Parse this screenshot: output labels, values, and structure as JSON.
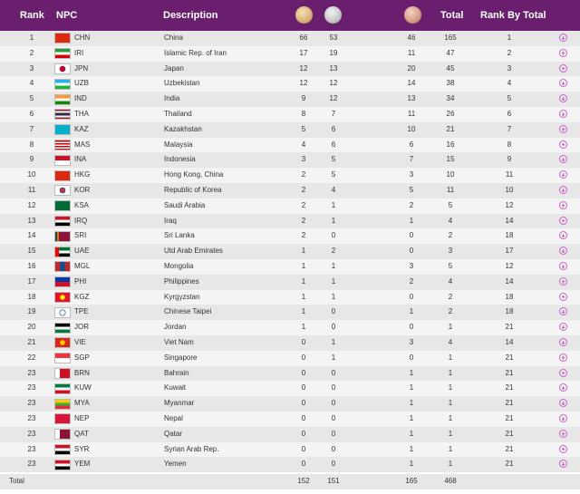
{
  "header": {
    "rank": "Rank",
    "npc": "NPC",
    "description": "Description",
    "gold_icon": "gold-medal-icon",
    "silver_icon": "silver-medal-icon",
    "bronze_icon": "bronze-medal-icon",
    "total": "Total",
    "rank_by_total": "Rank By Total"
  },
  "rows": [
    {
      "rank": "1",
      "code": "CHN",
      "desc": "China",
      "g": "66",
      "s": "53",
      "b": "46",
      "t": "165",
      "rbt": "1",
      "flag": "china-flag"
    },
    {
      "rank": "2",
      "code": "IRI",
      "desc": "Islamic Rep. of Iran",
      "g": "17",
      "s": "19",
      "b": "11",
      "t": "47",
      "rbt": "2",
      "flag": "iran-flag"
    },
    {
      "rank": "3",
      "code": "JPN",
      "desc": "Japan",
      "g": "12",
      "s": "13",
      "b": "20",
      "t": "45",
      "rbt": "3",
      "flag": "japan-flag"
    },
    {
      "rank": "4",
      "code": "UZB",
      "desc": "Uzbekistan",
      "g": "12",
      "s": "12",
      "b": "14",
      "t": "38",
      "rbt": "4",
      "flag": "uzbekistan-flag"
    },
    {
      "rank": "5",
      "code": "IND",
      "desc": "India",
      "g": "9",
      "s": "12",
      "b": "13",
      "t": "34",
      "rbt": "5",
      "flag": "india-flag"
    },
    {
      "rank": "6",
      "code": "THA",
      "desc": "Thailand",
      "g": "8",
      "s": "7",
      "b": "11",
      "t": "26",
      "rbt": "6",
      "flag": "thailand-flag"
    },
    {
      "rank": "7",
      "code": "KAZ",
      "desc": "Kazakhstan",
      "g": "5",
      "s": "6",
      "b": "10",
      "t": "21",
      "rbt": "7",
      "flag": "kazakhstan-flag"
    },
    {
      "rank": "8",
      "code": "MAS",
      "desc": "Malaysia",
      "g": "4",
      "s": "6",
      "b": "6",
      "t": "16",
      "rbt": "8",
      "flag": "malaysia-flag"
    },
    {
      "rank": "9",
      "code": "INA",
      "desc": "Indonesia",
      "g": "3",
      "s": "5",
      "b": "7",
      "t": "15",
      "rbt": "9",
      "flag": "indonesia-flag"
    },
    {
      "rank": "10",
      "code": "HKG",
      "desc": "Hong Kong, China",
      "g": "2",
      "s": "5",
      "b": "3",
      "t": "10",
      "rbt": "11",
      "flag": "hong-kong-flag"
    },
    {
      "rank": "11",
      "code": "KOR",
      "desc": "Republic of Korea",
      "g": "2",
      "s": "4",
      "b": "5",
      "t": "11",
      "rbt": "10",
      "flag": "korea-flag"
    },
    {
      "rank": "12",
      "code": "KSA",
      "desc": "Saudi Arabia",
      "g": "2",
      "s": "1",
      "b": "2",
      "t": "5",
      "rbt": "12",
      "flag": "saudi-arabia-flag"
    },
    {
      "rank": "13",
      "code": "IRQ",
      "desc": "Iraq",
      "g": "2",
      "s": "1",
      "b": "1",
      "t": "4",
      "rbt": "14",
      "flag": "iraq-flag"
    },
    {
      "rank": "14",
      "code": "SRI",
      "desc": "Sri Lanka",
      "g": "2",
      "s": "0",
      "b": "0",
      "t": "2",
      "rbt": "18",
      "flag": "sri-lanka-flag"
    },
    {
      "rank": "15",
      "code": "UAE",
      "desc": "Utd Arab Emirates",
      "g": "1",
      "s": "2",
      "b": "0",
      "t": "3",
      "rbt": "17",
      "flag": "uae-flag"
    },
    {
      "rank": "16",
      "code": "MGL",
      "desc": "Mongolia",
      "g": "1",
      "s": "1",
      "b": "3",
      "t": "5",
      "rbt": "12",
      "flag": "mongolia-flag"
    },
    {
      "rank": "17",
      "code": "PHI",
      "desc": "Philippines",
      "g": "1",
      "s": "1",
      "b": "2",
      "t": "4",
      "rbt": "14",
      "flag": "philippines-flag"
    },
    {
      "rank": "18",
      "code": "KGZ",
      "desc": "Kyrgyzstan",
      "g": "1",
      "s": "1",
      "b": "0",
      "t": "2",
      "rbt": "18",
      "flag": "kyrgyzstan-flag"
    },
    {
      "rank": "19",
      "code": "TPE",
      "desc": "Chinese Taipei",
      "g": "1",
      "s": "0",
      "b": "1",
      "t": "2",
      "rbt": "18",
      "flag": "chinese-taipei-flag"
    },
    {
      "rank": "20",
      "code": "JOR",
      "desc": "Jordan",
      "g": "1",
      "s": "0",
      "b": "0",
      "t": "1",
      "rbt": "21",
      "flag": "jordan-flag"
    },
    {
      "rank": "21",
      "code": "VIE",
      "desc": "Viet Nam",
      "g": "0",
      "s": "1",
      "b": "3",
      "t": "4",
      "rbt": "14",
      "flag": "vietnam-flag"
    },
    {
      "rank": "22",
      "code": "SGP",
      "desc": "Singapore",
      "g": "0",
      "s": "1",
      "b": "0",
      "t": "1",
      "rbt": "21",
      "flag": "singapore-flag"
    },
    {
      "rank": "23",
      "code": "BRN",
      "desc": "Bahrain",
      "g": "0",
      "s": "0",
      "b": "1",
      "t": "1",
      "rbt": "21",
      "flag": "bahrain-flag"
    },
    {
      "rank": "23",
      "code": "KUW",
      "desc": "Kuwait",
      "g": "0",
      "s": "0",
      "b": "1",
      "t": "1",
      "rbt": "21",
      "flag": "kuwait-flag"
    },
    {
      "rank": "23",
      "code": "MYA",
      "desc": "Myanmar",
      "g": "0",
      "s": "0",
      "b": "1",
      "t": "1",
      "rbt": "21",
      "flag": "myanmar-flag"
    },
    {
      "rank": "23",
      "code": "NEP",
      "desc": "Nepal",
      "g": "0",
      "s": "0",
      "b": "1",
      "t": "1",
      "rbt": "21",
      "flag": "nepal-flag"
    },
    {
      "rank": "23",
      "code": "QAT",
      "desc": "Qatar",
      "g": "0",
      "s": "0",
      "b": "1",
      "t": "1",
      "rbt": "21",
      "flag": "qatar-flag"
    },
    {
      "rank": "23",
      "code": "SYR",
      "desc": "Syrian Arab Rep.",
      "g": "0",
      "s": "0",
      "b": "1",
      "t": "1",
      "rbt": "21",
      "flag": "syria-flag"
    },
    {
      "rank": "23",
      "code": "YEM",
      "desc": "Yemen",
      "g": "0",
      "s": "0",
      "b": "1",
      "t": "1",
      "rbt": "21",
      "flag": "yemen-flag"
    }
  ],
  "totals": {
    "label": "Total",
    "gold": "152",
    "silver": "151",
    "bronze": "165",
    "total": "468"
  },
  "colors": {
    "header_bg": "#6a1f6e",
    "row_odd": "#e7e7e7",
    "row_even": "#f4f4f4",
    "plus_icon": "#cf5fc9"
  }
}
